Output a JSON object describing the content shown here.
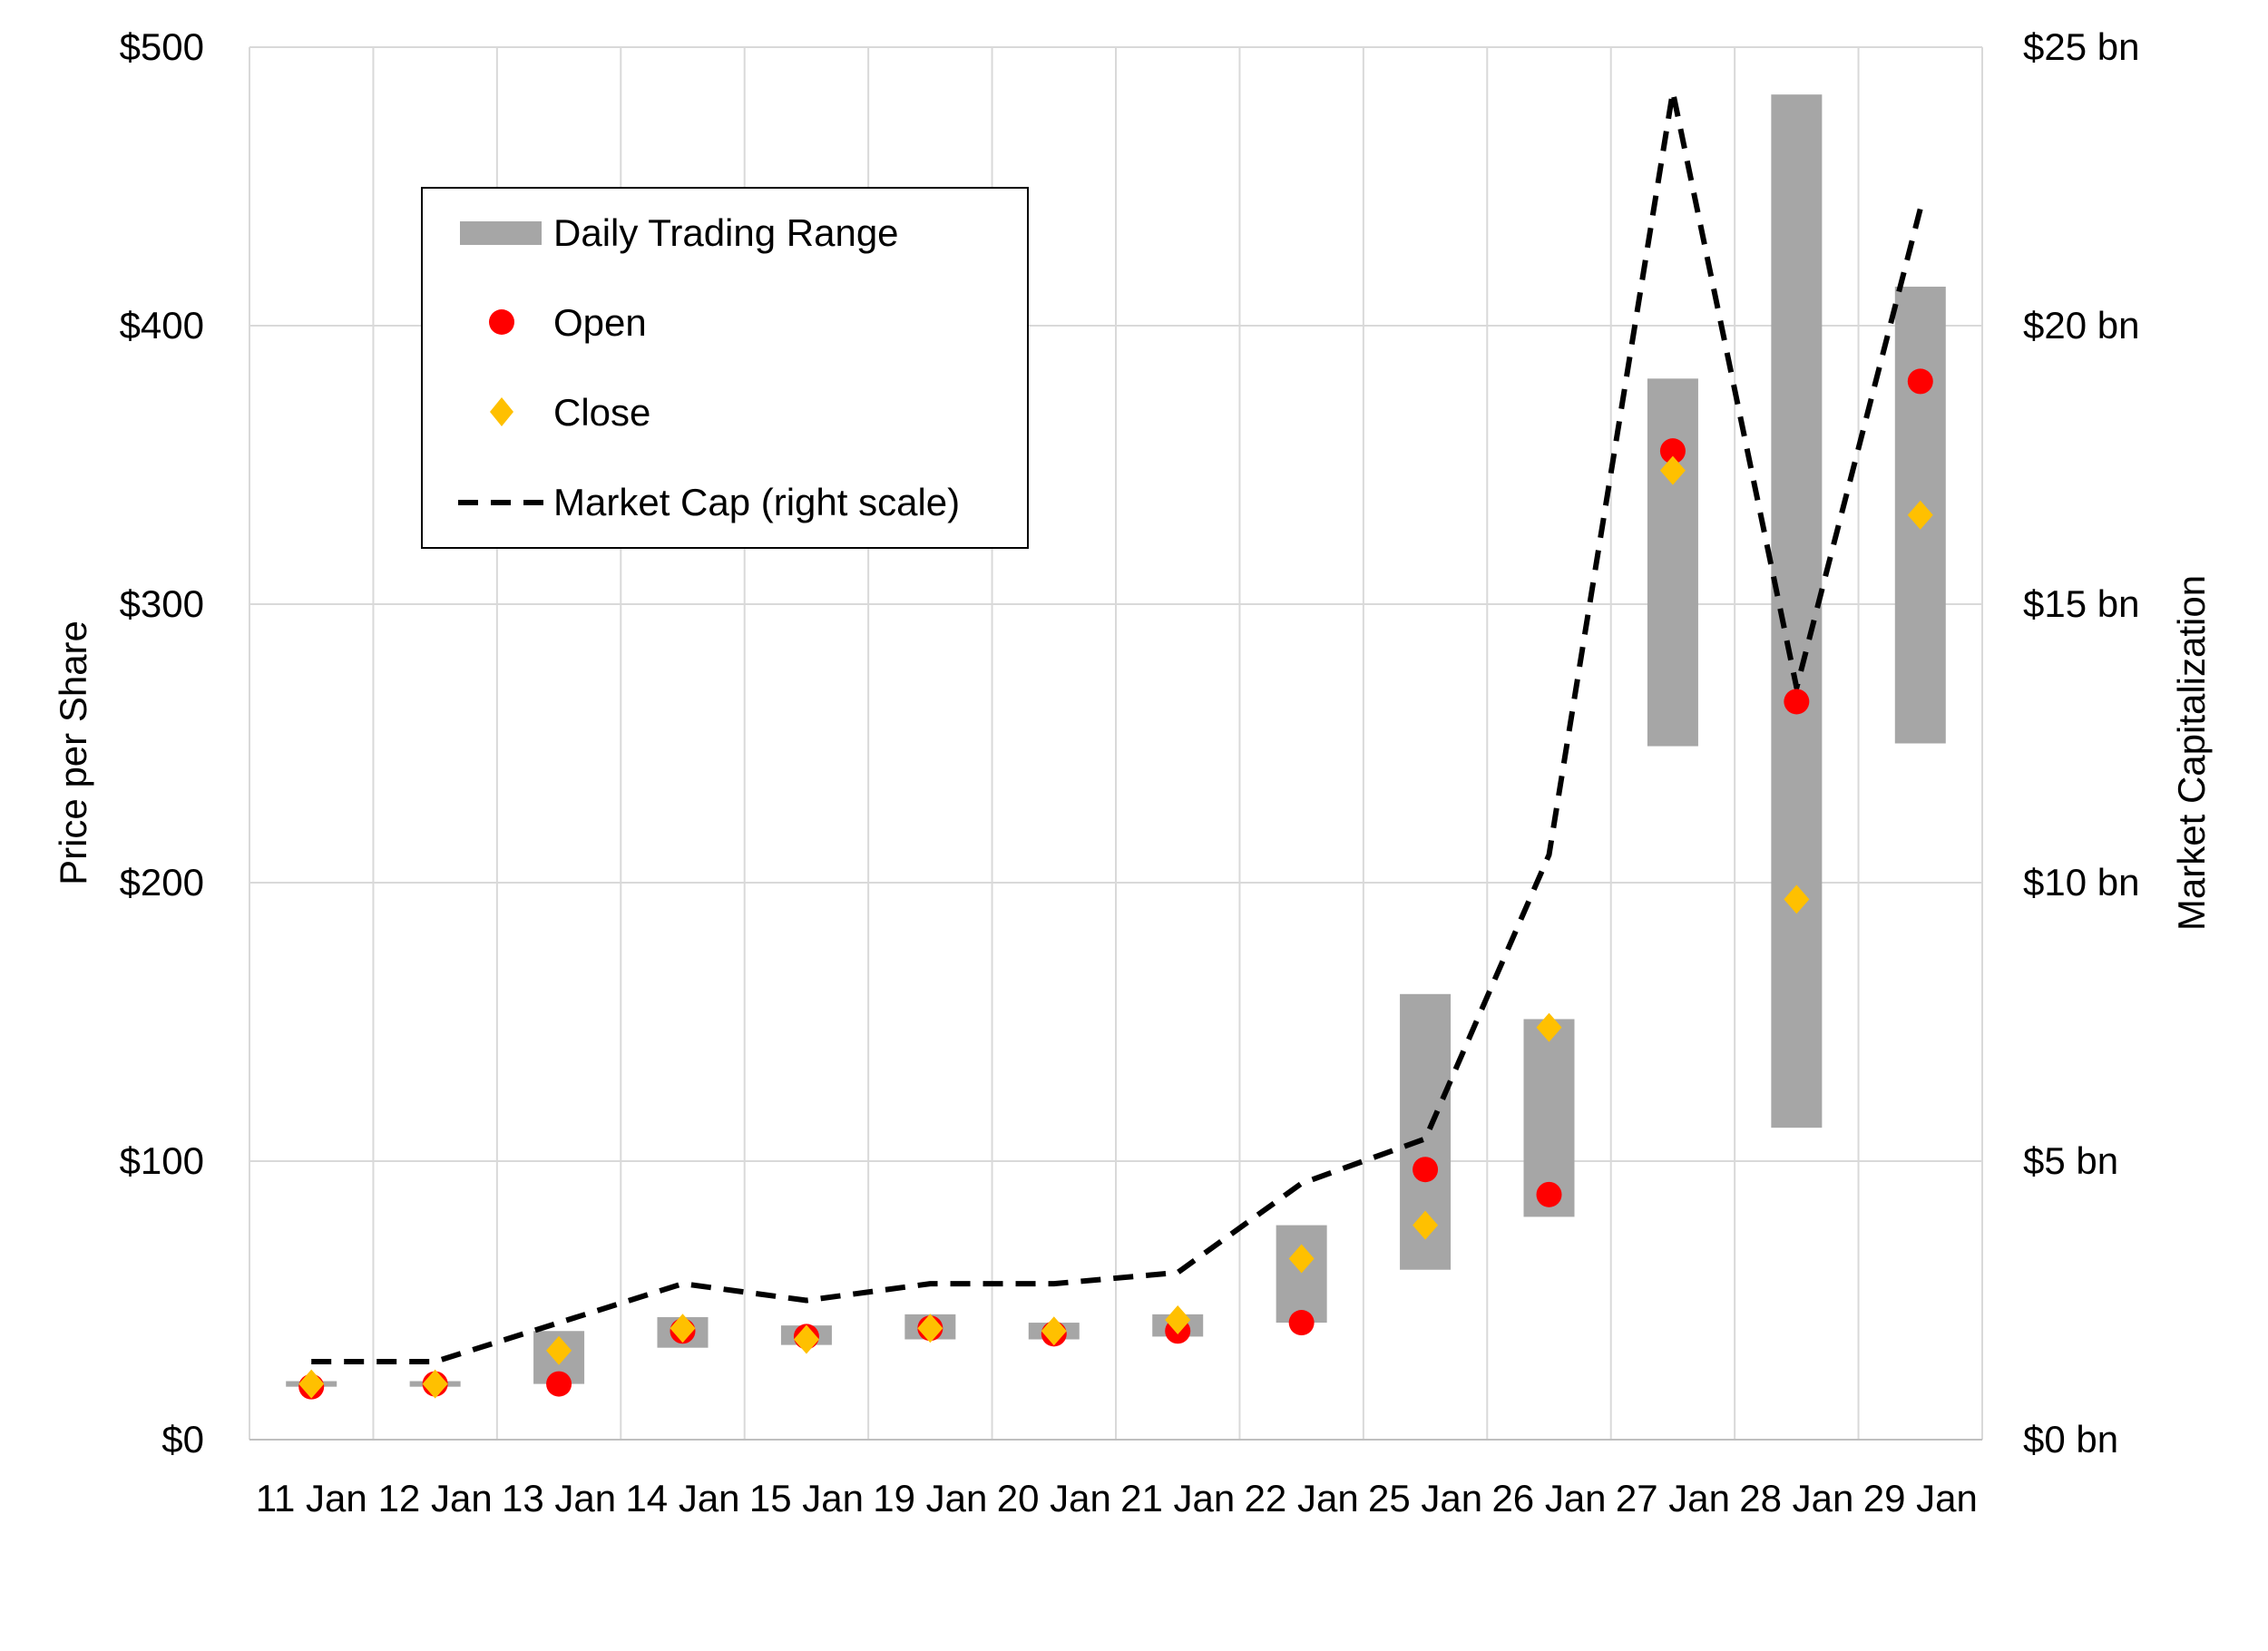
{
  "chart_data": {
    "type": "bar",
    "title": "",
    "categories": [
      "11 Jan",
      "12 Jan",
      "13 Jan",
      "14 Jan",
      "15 Jan",
      "19 Jan",
      "20 Jan",
      "21 Jan",
      "22 Jan",
      "25 Jan",
      "26 Jan",
      "27 Jan",
      "28 Jan",
      "29 Jan"
    ],
    "series": [
      {
        "name": "Daily Trading Range",
        "type": "range-bar",
        "color": "#a6a6a6",
        "low": [
          19,
          19,
          20,
          33,
          34,
          36,
          36,
          37,
          42,
          61,
          80,
          249,
          112,
          250
        ],
        "high": [
          21,
          21,
          39,
          44,
          41,
          45,
          42,
          45,
          77,
          160,
          151,
          381,
          483,
          414
        ]
      },
      {
        "name": "Open",
        "type": "scatter",
        "marker": "circle",
        "color": "#ff0000",
        "values": [
          19,
          20,
          20,
          39,
          37,
          40,
          38,
          39,
          42,
          97,
          88,
          355,
          265,
          380
        ]
      },
      {
        "name": "Close",
        "type": "scatter",
        "marker": "diamond",
        "color": "#ffc000",
        "values": [
          20,
          20,
          32,
          40,
          36,
          40,
          39,
          43,
          65,
          77,
          148,
          348,
          194,
          332
        ]
      },
      {
        "name": "Market Cap (right scale)",
        "type": "line",
        "axis": "right",
        "color": "#000000",
        "dash": "dashed",
        "values": [
          1.4,
          1.4,
          2.1,
          2.8,
          2.5,
          2.8,
          2.8,
          3.0,
          4.6,
          5.4,
          10.5,
          24.2,
          13.5,
          22.1
        ]
      }
    ],
    "ylabel": "Price  per Share",
    "y2label": "Market Capitalization",
    "ylim": [
      0,
      500
    ],
    "y2lim": [
      0,
      25
    ],
    "yticks": [
      "$0",
      "$100",
      "$200",
      "$300",
      "$400",
      "$500"
    ],
    "y2ticks": [
      "$0 bn",
      "$5 bn",
      "$10 bn",
      "$15 bn",
      "$20 bn",
      "$25 bn"
    ],
    "grid": true,
    "legend_position": "top-left inside plot"
  }
}
